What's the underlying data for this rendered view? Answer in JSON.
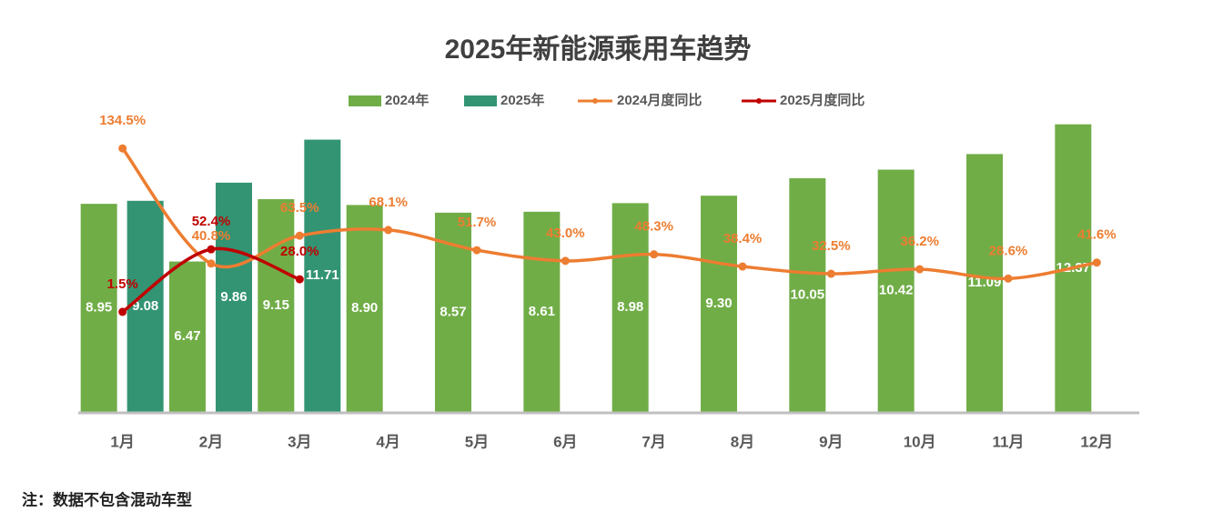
{
  "chart_data": {
    "type": "bar_line",
    "title": "2025年新能源乘用车趋势",
    "categories": [
      "1月",
      "2月",
      "3月",
      "4月",
      "5月",
      "6月",
      "7月",
      "8月",
      "9月",
      "10月",
      "11月",
      "12月"
    ],
    "ylim": [
      0,
      14
    ],
    "y2lim": [
      -80,
      185
    ],
    "legend": "top",
    "series": [
      {
        "name": "2024年",
        "type": "bar",
        "color": "#70ad47",
        "values": [
          8.95,
          6.47,
          9.15,
          8.9,
          8.57,
          8.61,
          8.98,
          9.3,
          10.05,
          10.42,
          11.09,
          12.37
        ],
        "value_labels": [
          "8.95",
          "6.47",
          "9.15",
          "8.90",
          "8.57",
          "8.61",
          "8.98",
          "9.30",
          "10.05",
          "10.42",
          "11.09",
          "12.37"
        ]
      },
      {
        "name": "2025年",
        "type": "bar",
        "color": "#339473",
        "values": [
          9.08,
          9.86,
          11.71,
          null,
          null,
          null,
          null,
          null,
          null,
          null,
          null,
          null
        ],
        "value_labels": [
          "9.08",
          "9.86",
          "11.71",
          null,
          null,
          null,
          null,
          null,
          null,
          null,
          null,
          null
        ]
      },
      {
        "name": "2024月度同比",
        "type": "line",
        "axis": "y2",
        "color": "#ed7d31",
        "values": [
          134.5,
          40.8,
          63.5,
          68.1,
          51.7,
          43.0,
          48.3,
          38.4,
          32.5,
          36.2,
          28.6,
          41.6
        ],
        "value_labels": [
          "134.5%",
          "40.8%",
          "63.5%",
          "68.1%",
          "51.7%",
          "43.0%",
          "48.3%",
          "38.4%",
          "32.5%",
          "36.2%",
          "28.6%",
          "41.6%"
        ]
      },
      {
        "name": "2025月度同比",
        "type": "line",
        "axis": "y2",
        "color": "#c00000",
        "values": [
          1.5,
          52.4,
          28.0,
          null,
          null,
          null,
          null,
          null,
          null,
          null,
          null,
          null
        ],
        "value_labels": [
          "1.5%",
          "52.4%",
          "28.0%",
          null,
          null,
          null,
          null,
          null,
          null,
          null,
          null,
          null
        ]
      }
    ],
    "note": "注：数据不包含混动车型"
  }
}
